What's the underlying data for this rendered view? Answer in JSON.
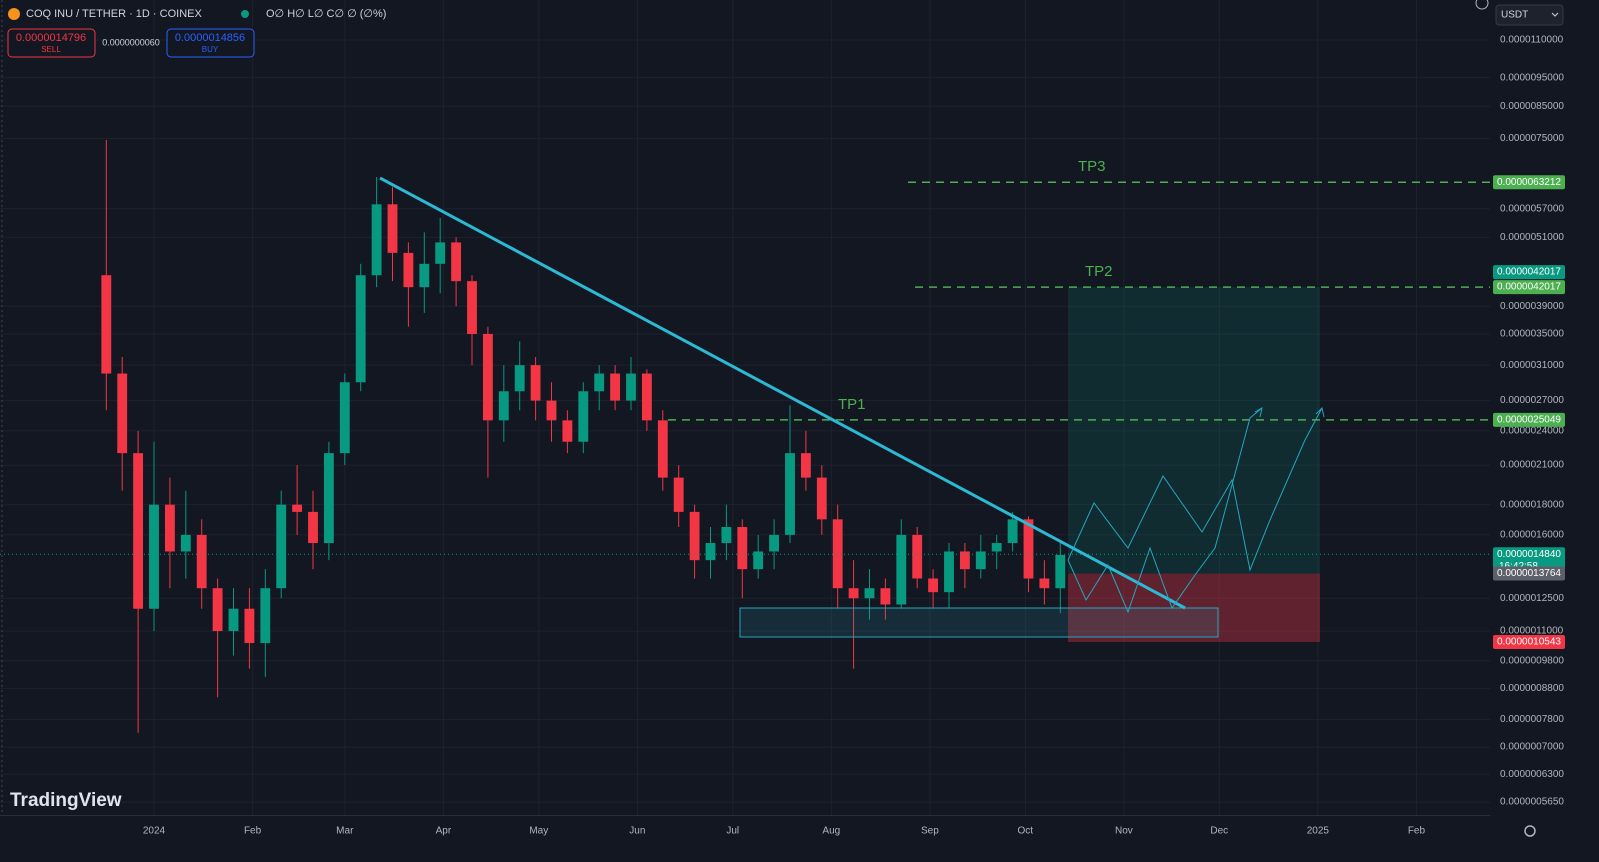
{
  "chart_data": {
    "type": "candlestick",
    "title": "COQ INU / TETHER · 1D · COINEX",
    "ohlc_legend": "O∅ H∅ L∅ C∅ ∅ (∅%)",
    "log_scale": true,
    "grid": true,
    "up_color": "#089981",
    "down_color": "#f23645",
    "x": [
      -15,
      -10,
      -5,
      0,
      5,
      10,
      15,
      20,
      25,
      30,
      35,
      40,
      45,
      50,
      55,
      60,
      65,
      70,
      75,
      80,
      85,
      90,
      95,
      100,
      105,
      110,
      115,
      120,
      125,
      130,
      135,
      140,
      145,
      150,
      155,
      160,
      165,
      170,
      175,
      180,
      185,
      190,
      195,
      200,
      205,
      210,
      215,
      220,
      225,
      230,
      235,
      240,
      245,
      250,
      255,
      260,
      265,
      270,
      275,
      280,
      285
    ],
    "open": [
      4.4e-06,
      3e-06,
      2.2e-06,
      1.2e-06,
      1.8e-06,
      1.5e-06,
      1.6e-06,
      1.3e-06,
      1.1e-06,
      1.2e-06,
      1.05e-06,
      1.3e-06,
      1.8e-06,
      1.75e-06,
      1.55e-06,
      2.2e-06,
      2.9e-06,
      4.4e-06,
      5.8e-06,
      4.8e-06,
      4.2e-06,
      4.6e-06,
      5e-06,
      4.3e-06,
      3.5e-06,
      2.5e-06,
      2.8e-06,
      3.1e-06,
      2.7e-06,
      2.5e-06,
      2.3e-06,
      2.8e-06,
      3e-06,
      2.7e-06,
      3e-06,
      2.5e-06,
      2e-06,
      1.75e-06,
      1.45e-06,
      1.55e-06,
      1.65e-06,
      1.4e-06,
      1.5e-06,
      1.6e-06,
      2.2e-06,
      2e-06,
      1.7e-06,
      1.3e-06,
      1.25e-06,
      1.3e-06,
      1.22e-06,
      1.6e-06,
      1.35e-06,
      1.28e-06,
      1.5e-06,
      1.4e-06,
      1.5e-06,
      1.55e-06,
      1.7e-06,
      1.35e-06,
      1.3e-06
    ],
    "high": [
      7.45e-06,
      3.2e-06,
      2.4e-06,
      2.3e-06,
      2e-06,
      1.9e-06,
      1.7e-06,
      1.35e-06,
      1.3e-06,
      1.3e-06,
      1.4e-06,
      1.9e-06,
      2.1e-06,
      1.9e-06,
      2.3e-06,
      3e-06,
      4.6e-06,
      6.45e-06,
      6.2e-06,
      5e-06,
      5.2e-06,
      5.5e-06,
      5.1e-06,
      4.4e-06,
      3.6e-06,
      3.1e-06,
      3.4e-06,
      3.2e-06,
      2.9e-06,
      2.6e-06,
      2.9e-06,
      3.1e-06,
      3.1e-06,
      3.2e-06,
      3.05e-06,
      2.6e-06,
      2.1e-06,
      1.8e-06,
      1.65e-06,
      1.8e-06,
      1.7e-06,
      1.6e-06,
      1.7e-06,
      2.65e-06,
      2.4e-06,
      2.1e-06,
      1.8e-06,
      1.45e-06,
      1.4e-06,
      1.35e-06,
      1.7e-06,
      1.65e-06,
      1.4e-06,
      1.55e-06,
      1.55e-06,
      1.6e-06,
      1.6e-06,
      1.75e-06,
      1.72e-06,
      1.45e-06,
      1.55e-06
    ],
    "low": [
      2.6e-06,
      1.9e-06,
      7.4e-07,
      1.1e-06,
      1.3e-06,
      1.35e-06,
      1.2e-06,
      8.5e-07,
      1e-06,
      9.5e-07,
      9.2e-07,
      1.25e-06,
      1.6e-06,
      1.4e-06,
      1.45e-06,
      2.1e-06,
      2.8e-06,
      4.2e-06,
      4.3e-06,
      3.6e-06,
      3.8e-06,
      4.1e-06,
      3.9e-06,
      3.1e-06,
      2e-06,
      2.3e-06,
      2.6e-06,
      2.5e-06,
      2.3e-06,
      2.2e-06,
      2.2e-06,
      2.6e-06,
      2.6e-06,
      2.6e-06,
      2.4e-06,
      1.9e-06,
      1.65e-06,
      1.35e-06,
      1.35e-06,
      1.45e-06,
      1.25e-06,
      1.35e-06,
      1.4e-06,
      1.55e-06,
      1.9e-06,
      1.6e-06,
      1.2e-06,
      9.5e-07,
      1.15e-06,
      1.15e-06,
      1.2e-06,
      1.3e-06,
      1.2e-06,
      1.2e-06,
      1.3e-06,
      1.35e-06,
      1.4e-06,
      1.5e-06,
      1.28e-06,
      1.22e-06,
      1.18e-06
    ],
    "close": [
      3e-06,
      2.2e-06,
      1.2e-06,
      1.8e-06,
      1.5e-06,
      1.6e-06,
      1.3e-06,
      1.1e-06,
      1.2e-06,
      1.05e-06,
      1.3e-06,
      1.8e-06,
      1.75e-06,
      1.55e-06,
      2.2e-06,
      2.9e-06,
      4.4e-06,
      5.8e-06,
      4.8e-06,
      4.2e-06,
      4.6e-06,
      5e-06,
      4.3e-06,
      3.5e-06,
      2.5e-06,
      2.8e-06,
      3.1e-06,
      2.7e-06,
      2.5e-06,
      2.3e-06,
      2.8e-06,
      3e-06,
      2.7e-06,
      3e-06,
      2.5e-06,
      2e-06,
      1.75e-06,
      1.45e-06,
      1.55e-06,
      1.65e-06,
      1.4e-06,
      1.5e-06,
      1.6e-06,
      2.2e-06,
      2e-06,
      1.7e-06,
      1.3e-06,
      1.25e-06,
      1.3e-06,
      1.22e-06,
      1.6e-06,
      1.35e-06,
      1.28e-06,
      1.5e-06,
      1.4e-06,
      1.5e-06,
      1.55e-06,
      1.7e-06,
      1.35e-06,
      1.3e-06,
      1.48e-06
    ],
    "xlim": [
      -48.43,
      420.13
    ],
    "xticks": [
      {
        "value": 0,
        "label": "2024"
      },
      {
        "value": 31,
        "label": "Feb"
      },
      {
        "value": 60,
        "label": "Mar"
      },
      {
        "value": 91,
        "label": "Apr"
      },
      {
        "value": 121,
        "label": "May"
      },
      {
        "value": 152,
        "label": "Jun"
      },
      {
        "value": 182,
        "label": "Jul"
      },
      {
        "value": 213,
        "label": "Aug"
      },
      {
        "value": 244,
        "label": "Sep"
      },
      {
        "value": 274,
        "label": "Oct"
      },
      {
        "value": 305,
        "label": "Nov"
      },
      {
        "value": 335,
        "label": "Dec"
      },
      {
        "value": 366,
        "label": "2025"
      },
      {
        "value": 397,
        "label": "Feb"
      }
    ],
    "ylim": [
      5.373e-07,
      1.2856e-05
    ],
    "yticks": [
      {
        "value": 1.1e-05,
        "label": "0.0000110000"
      },
      {
        "value": 9.5e-06,
        "label": "0.0000095000"
      },
      {
        "value": 8.5e-06,
        "label": "0.0000085000"
      },
      {
        "value": 7.5e-06,
        "label": "0.0000075000"
      },
      {
        "value": 5.7e-06,
        "label": "0.0000057000"
      },
      {
        "value": 5.1e-06,
        "label": "0.0000051000"
      },
      {
        "value": 3.9e-06,
        "label": "0.0000039000"
      },
      {
        "value": 3.5e-06,
        "label": "0.0000035000"
      },
      {
        "value": 3.1e-06,
        "label": "0.0000031000"
      },
      {
        "value": 2.7e-06,
        "label": "0.0000027000"
      },
      {
        "value": 2.4e-06,
        "label": "0.0000024000"
      },
      {
        "value": 2.1e-06,
        "label": "0.0000021000"
      },
      {
        "value": 1.8e-06,
        "label": "0.0000018000"
      },
      {
        "value": 1.6e-06,
        "label": "0.0000016000"
      },
      {
        "value": 1.25e-06,
        "label": "0.0000012500"
      },
      {
        "value": 1.1e-06,
        "label": "0.0000011000"
      },
      {
        "value": 9.8e-07,
        "label": "0.0000009800"
      },
      {
        "value": 8.8e-07,
        "label": "0.0000008800"
      },
      {
        "value": 7.8e-07,
        "label": "0.0000007800"
      },
      {
        "value": 7e-07,
        "label": "0.0000007000"
      },
      {
        "value": 6.3e-07,
        "label": "0.0000006300"
      },
      {
        "value": 5.65e-07,
        "label": "0.0000005650"
      }
    ],
    "price_lines": [
      {
        "name": "TP3",
        "value": 6.3212e-06,
        "color": "#4caf50"
      },
      {
        "name": "TP2",
        "value": 4.2017e-06,
        "color": "#4caf50"
      },
      {
        "name": "TP1",
        "value": 2.5049e-06,
        "color": "#4caf50"
      }
    ],
    "axis_markers": [
      {
        "value": 6.3212e-06,
        "label": "0.0000063212",
        "color": "#4caf50"
      },
      {
        "value": 4.2017e-06,
        "label": "0.0000042017",
        "color": "#4caf50"
      },
      {
        "value": 4.2017e-06,
        "label": "0.0000042017",
        "color": "#089981"
      },
      {
        "value": 2.5049e-06,
        "label": "0.0000025049",
        "color": "#4caf50"
      },
      {
        "value": 1.484e-06,
        "label": "0.0000014840",
        "color": "#089981",
        "countdown": "16:42:58"
      },
      {
        "value": 1.3764e-06,
        "label": "0.0000013764",
        "color": "#5d606b"
      },
      {
        "value": 1.0543e-06,
        "label": "0.0000010543",
        "color": "#f23645"
      }
    ]
  },
  "toolbar": {
    "sell_price": "0.0000014796",
    "sell_label": "SELL",
    "spread": "0.0000000060",
    "buy_price": "0.0000014856",
    "buy_label": "BUY",
    "currency": "USDT",
    "brand": "TradingView"
  }
}
